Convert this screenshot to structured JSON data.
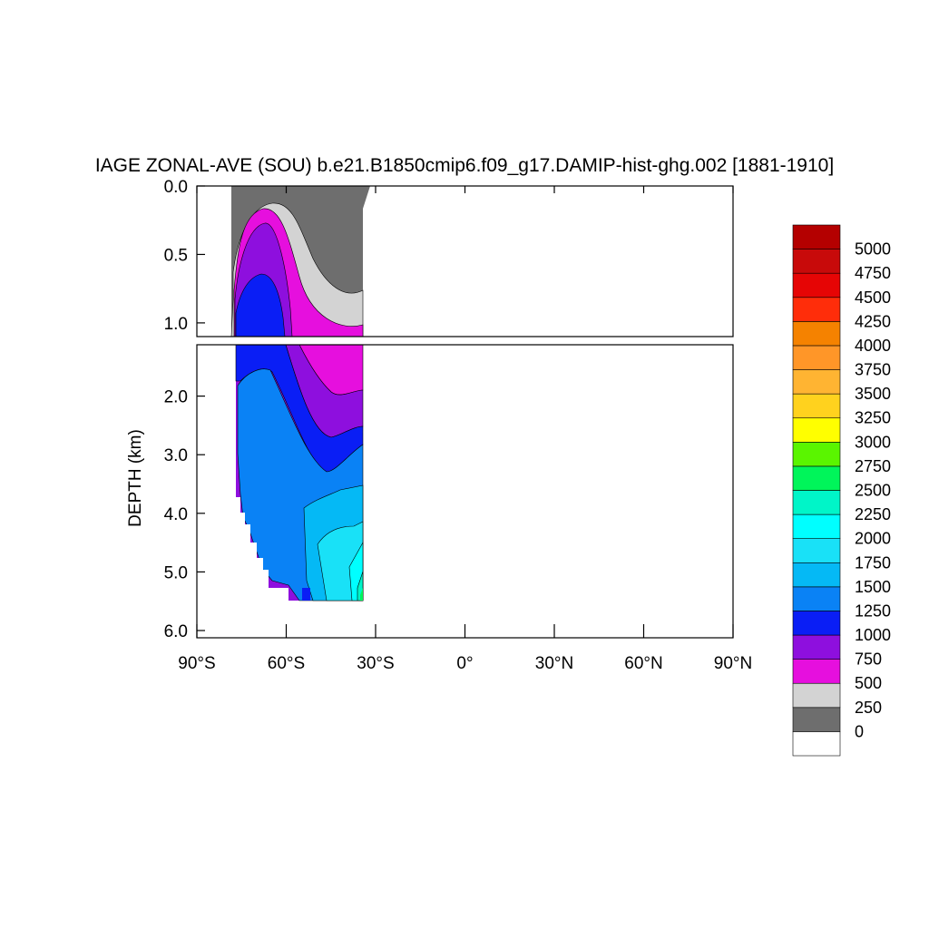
{
  "chart_data": {
    "type": "heatmap",
    "title": "IAGE ZONAL-AVE (SOU) b.e21.B1850cmip6.f09_g17.DAMIP-hist-ghg.002 [1881-1910]",
    "ylabel": "DEPTH (km)",
    "xlabel": "",
    "x_ticks": [
      "90°S",
      "60°S",
      "30°S",
      "0°",
      "30°N",
      "60°N",
      "90°N"
    ],
    "x_tick_values": [
      -90,
      -60,
      -30,
      0,
      30,
      60,
      90
    ],
    "xlim": [
      -90,
      90
    ],
    "upper_panel": {
      "ylim": [
        0.0,
        1.1
      ],
      "y_ticks": [
        "0.0",
        "0.5",
        "1.0"
      ],
      "y_tick_values": [
        0.0,
        0.5,
        1.0
      ]
    },
    "lower_panel": {
      "ylim": [
        1.0,
        6.0
      ],
      "y_ticks": [
        "2.0",
        "3.0",
        "4.0",
        "5.0",
        "6.0"
      ],
      "y_tick_values": [
        2.0,
        3.0,
        4.0,
        5.0,
        6.0
      ]
    },
    "colorbar": {
      "levels": [
        "0",
        "250",
        "500",
        "750",
        "1000",
        "1250",
        "1500",
        "1750",
        "2000",
        "2250",
        "2500",
        "2750",
        "3000",
        "3250",
        "3500",
        "3750",
        "4000",
        "4250",
        "4500",
        "4750",
        "5000"
      ],
      "colors": [
        "#ffffff",
        "#6e6e6e",
        "#d3d3d3",
        "#e60fde",
        "#8e0fde",
        "#0a1ef5",
        "#0a82f5",
        "#05b9f5",
        "#19e1f7",
        "#00ffff",
        "#00f5c8",
        "#00f55a",
        "#5af500",
        "#ffff00",
        "#ffd21e",
        "#ffb432",
        "#ff9628",
        "#f58200",
        "#ff2d0a",
        "#e60505",
        "#c80a0a",
        "#b40000"
      ]
    },
    "grid": false,
    "legend": "right"
  }
}
